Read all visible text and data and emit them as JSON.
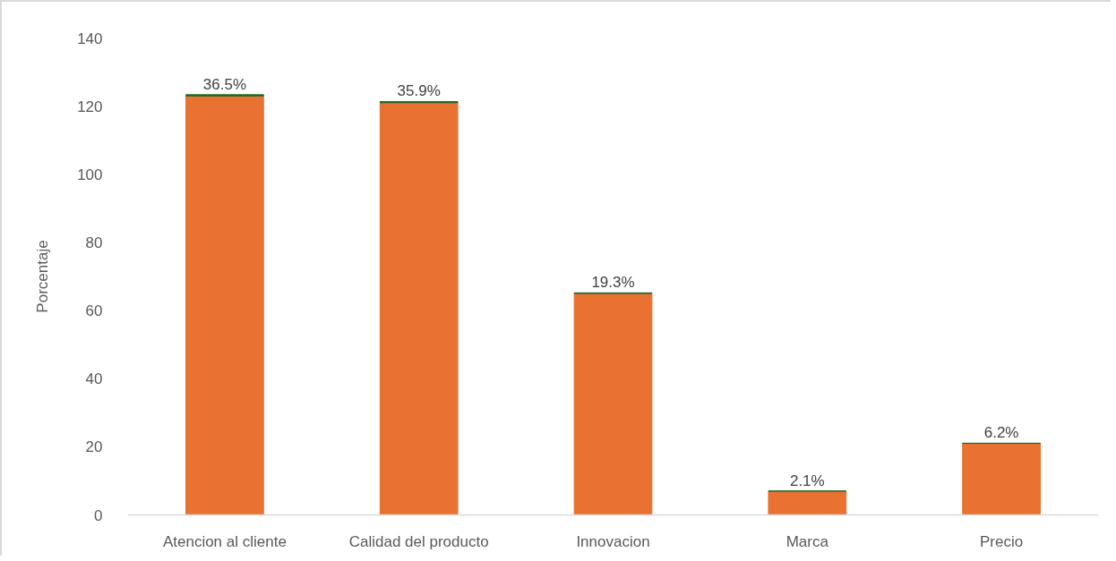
{
  "chart_data": {
    "type": "bar",
    "ylabel": "Porcentaje",
    "categories": [
      "Atencion al cliente",
      "Calidad del producto",
      "Innovacion",
      "Marca",
      "Precio"
    ],
    "stacked": true,
    "series": [
      {
        "color": "#e97132",
        "values": [
          123,
          121,
          65,
          7,
          21
        ]
      },
      {
        "color": "#196b24",
        "values": [
          0.365,
          0.359,
          0.193,
          0.021,
          0.062
        ],
        "value_labels": [
          "36.5%",
          "35.9%",
          "19.3%",
          "2.1%",
          "6.2%"
        ]
      }
    ],
    "ylim": [
      0,
      140
    ],
    "yticks": [
      0,
      20,
      40,
      60,
      80,
      100,
      120,
      140
    ],
    "grid": false
  }
}
